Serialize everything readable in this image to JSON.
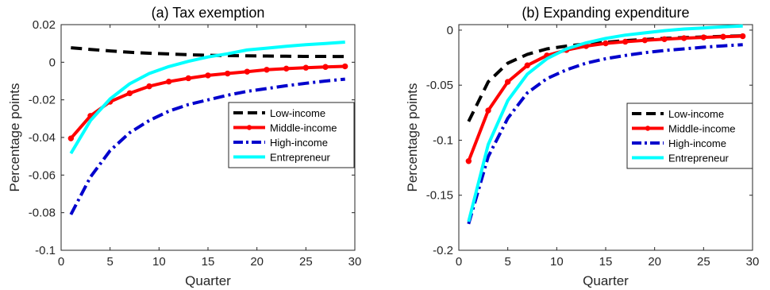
{
  "chart_data": [
    {
      "type": "line",
      "title": "(a) Tax exemption",
      "xlabel": "Quarter",
      "ylabel": "Percentage points",
      "xlim": [
        0,
        30
      ],
      "ylim": [
        -0.1,
        0.02
      ],
      "xticks": [
        0,
        5,
        10,
        15,
        20,
        25,
        30
      ],
      "yticks": [
        -0.1,
        -0.08,
        -0.06,
        -0.04,
        -0.02,
        0,
        0.02
      ],
      "ytick_labels": [
        "-0.1",
        "-0.08",
        "-0.06",
        "-0.04",
        "-0.02",
        "0",
        "0.02"
      ],
      "grid": false,
      "legend_position": "center-right",
      "x": [
        1,
        3,
        5,
        7,
        9,
        11,
        13,
        15,
        17,
        19,
        21,
        23,
        25,
        27,
        29
      ],
      "series": [
        {
          "name": "Low-income",
          "color": "#000000",
          "style": "dashed",
          "values": [
            0.0077,
            0.0068,
            0.006,
            0.0053,
            0.0048,
            0.0044,
            0.004,
            0.0037,
            0.0035,
            0.0034,
            0.0033,
            0.0032,
            0.0031,
            0.0031,
            0.003
          ]
        },
        {
          "name": "Middle-income",
          "color": "#ff0000",
          "style": "solid-marker",
          "values": [
            -0.0405,
            -0.0285,
            -0.021,
            -0.0165,
            -0.0128,
            -0.0103,
            -0.0085,
            -0.007,
            -0.006,
            -0.005,
            -0.004,
            -0.0034,
            -0.0029,
            -0.0025,
            -0.0022
          ]
        },
        {
          "name": "High-income",
          "color": "#0000cc",
          "style": "dashdot",
          "values": [
            -0.081,
            -0.061,
            -0.047,
            -0.0375,
            -0.031,
            -0.026,
            -0.0225,
            -0.02,
            -0.0175,
            -0.0155,
            -0.014,
            -0.0125,
            -0.0112,
            -0.01,
            -0.009
          ]
        },
        {
          "name": "Entrepreneur",
          "color": "#00ffff",
          "style": "solid",
          "values": [
            -0.0485,
            -0.031,
            -0.0195,
            -0.0115,
            -0.006,
            -0.0023,
            0.0005,
            0.0028,
            0.0045,
            0.0065,
            0.0075,
            0.0085,
            0.0093,
            0.01,
            0.0107
          ]
        }
      ]
    },
    {
      "type": "line",
      "title": "(b) Expanding expenditure",
      "xlabel": "Quarter",
      "ylabel": "Percentage points",
      "xlim": [
        0,
        30
      ],
      "ylim": [
        -0.2,
        0.005
      ],
      "xticks": [
        0,
        5,
        10,
        15,
        20,
        25,
        30
      ],
      "yticks": [
        -0.2,
        -0.15,
        -0.1,
        -0.05,
        0
      ],
      "ytick_labels": [
        "-0.2",
        "-0.15",
        "-0.1",
        "-0.05",
        "0"
      ],
      "grid": false,
      "legend_position": "center-right",
      "x": [
        1,
        3,
        5,
        7,
        9,
        11,
        13,
        15,
        17,
        19,
        21,
        23,
        25,
        27,
        29
      ],
      "series": [
        {
          "name": "Low-income",
          "color": "#000000",
          "style": "dashed",
          "values": [
            -0.083,
            -0.047,
            -0.03,
            -0.022,
            -0.017,
            -0.0145,
            -0.0125,
            -0.011,
            -0.0095,
            -0.0085,
            -0.0075,
            -0.0068,
            -0.0062,
            -0.0057,
            -0.0052
          ]
        },
        {
          "name": "Middle-income",
          "color": "#ff0000",
          "style": "solid-marker",
          "values": [
            -0.119,
            -0.073,
            -0.047,
            -0.032,
            -0.023,
            -0.018,
            -0.0145,
            -0.012,
            -0.0105,
            -0.0092,
            -0.0082,
            -0.0073,
            -0.0066,
            -0.006,
            -0.0055
          ]
        },
        {
          "name": "High-income",
          "color": "#0000cc",
          "style": "dashdot",
          "values": [
            -0.176,
            -0.115,
            -0.08,
            -0.057,
            -0.044,
            -0.036,
            -0.03,
            -0.026,
            -0.023,
            -0.0205,
            -0.0185,
            -0.017,
            -0.0155,
            -0.0143,
            -0.0132
          ]
        },
        {
          "name": "Entrepreneur",
          "color": "#00ffff",
          "style": "solid",
          "values": [
            -0.174,
            -0.104,
            -0.064,
            -0.04,
            -0.026,
            -0.017,
            -0.0115,
            -0.0075,
            -0.0045,
            -0.0025,
            -0.0005,
            0.001,
            0.002,
            0.003,
            0.0038
          ]
        }
      ]
    }
  ]
}
